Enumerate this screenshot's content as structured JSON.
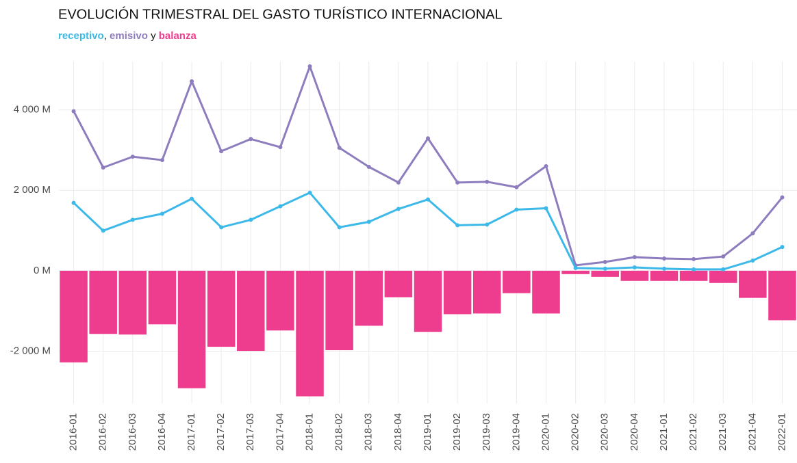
{
  "chart_data": {
    "type": "line",
    "title": "EVOLUCIÓN TRIMESTRAL DEL GASTO TURÍSTICO INTERNACIONAL",
    "subtitle_separators": [
      ", ",
      " y "
    ],
    "categories": [
      "2016-01",
      "2016-02",
      "2016-03",
      "2016-04",
      "2017-01",
      "2017-02",
      "2017-03",
      "2017-04",
      "2018-01",
      "2018-02",
      "2018-03",
      "2018-04",
      "2019-01",
      "2019-02",
      "2019-03",
      "2019-04",
      "2020-01",
      "2020-02",
      "2020-03",
      "2020-04",
      "2021-01",
      "2021-02",
      "2021-03",
      "2021-04",
      "2022-01"
    ],
    "series": [
      {
        "name": "receptivo",
        "color": "#3cb9e8",
        "type": "line",
        "values": [
          1688,
          996,
          1266,
          1418,
          1789,
          1080,
          1266,
          1603,
          1941,
          1080,
          1215,
          1536,
          1772,
          1131,
          1148,
          1519,
          1553,
          68,
          51,
          84,
          51,
          34,
          34,
          253,
          591
        ]
      },
      {
        "name": "emisivo",
        "color": "#8e7dbe",
        "type": "line",
        "values": [
          3966,
          2565,
          2835,
          2751,
          4709,
          2970,
          3274,
          3072,
          5080,
          3055,
          2582,
          2194,
          3291,
          2194,
          2211,
          2076,
          2599,
          135,
          219,
          338,
          304,
          290,
          354,
          928,
          1823
        ]
      },
      {
        "name": "balanza",
        "color": "#ee3d8f",
        "type": "bar",
        "values": [
          -2278,
          -1570,
          -1586,
          -1333,
          -2920,
          -1890,
          -1992,
          -1485,
          -3122,
          -1975,
          -1367,
          -658,
          -1519,
          -1080,
          -1063,
          -557,
          -1063,
          -84,
          -152,
          -253,
          -253,
          -253,
          -304,
          -675,
          -1232
        ]
      }
    ],
    "ylim": [
      -3300,
      5200
    ],
    "yticks": [
      {
        "value": -2000,
        "label": "-2 000 M"
      },
      {
        "value": 0,
        "label": "0 M"
      },
      {
        "value": 2000,
        "label": "2 000 M"
      },
      {
        "value": 4000,
        "label": "4 000 M"
      }
    ],
    "grid": true
  }
}
